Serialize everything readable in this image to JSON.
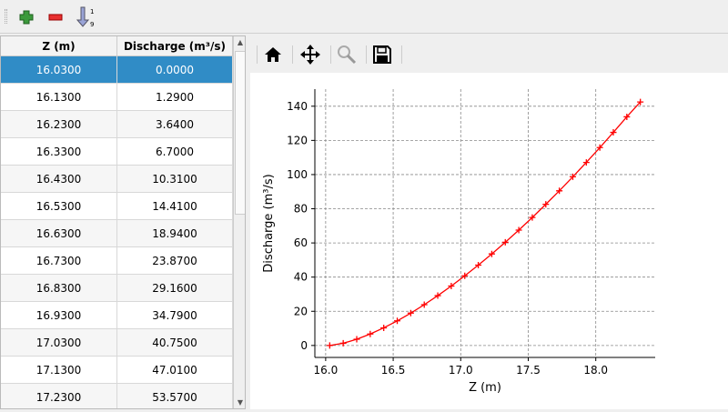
{
  "toolbar": {
    "icons": [
      "add-row-icon",
      "remove-row-icon",
      "sort-ascending-icon"
    ]
  },
  "table": {
    "headers": [
      "Z (m)",
      "Discharge (m³/s)"
    ],
    "selected_row": 0,
    "rows": [
      [
        "16.0300",
        "0.0000"
      ],
      [
        "16.1300",
        "1.2900"
      ],
      [
        "16.2300",
        "3.6400"
      ],
      [
        "16.3300",
        "6.7000"
      ],
      [
        "16.4300",
        "10.3100"
      ],
      [
        "16.5300",
        "14.4100"
      ],
      [
        "16.6300",
        "18.9400"
      ],
      [
        "16.7300",
        "23.8700"
      ],
      [
        "16.8300",
        "29.1600"
      ],
      [
        "16.9300",
        "34.7900"
      ],
      [
        "17.0300",
        "40.7500"
      ],
      [
        "17.1300",
        "47.0100"
      ],
      [
        "17.2300",
        "53.5700"
      ]
    ]
  },
  "plot_toolbar": {
    "icons": [
      "home-icon",
      "pan-icon",
      "zoom-icon",
      "save-icon"
    ]
  },
  "chart_data": {
    "type": "line",
    "xlabel": "Z (m)",
    "ylabel": "Discharge (m³/s)",
    "xlim": [
      15.92,
      18.44
    ],
    "ylim": [
      -7,
      150
    ],
    "xticks": [
      16.0,
      16.5,
      17.0,
      17.5,
      18.0
    ],
    "xtick_labels": [
      "16.0",
      "16.5",
      "17.0",
      "17.5",
      "18.0"
    ],
    "yticks": [
      0,
      20,
      40,
      60,
      80,
      100,
      120,
      140
    ],
    "ytick_labels": [
      "0",
      "20",
      "40",
      "60",
      "80",
      "100",
      "120",
      "140"
    ],
    "grid": true,
    "color": "#ff0000",
    "marker": "+",
    "x": [
      16.03,
      16.13,
      16.23,
      16.33,
      16.43,
      16.53,
      16.63,
      16.73,
      16.83,
      16.93,
      17.03,
      17.13,
      17.23,
      17.33,
      17.43,
      17.53,
      17.63,
      17.73,
      17.83,
      17.93,
      18.03,
      18.13,
      18.23,
      18.33
    ],
    "y": [
      0,
      1.29,
      3.64,
      6.7,
      10.31,
      14.41,
      18.94,
      23.87,
      29.16,
      34.79,
      40.75,
      47.01,
      53.57,
      60.4,
      67.5,
      74.9,
      82.6,
      90.5,
      98.7,
      107.1,
      115.8,
      124.7,
      133.8,
      142.5
    ]
  }
}
